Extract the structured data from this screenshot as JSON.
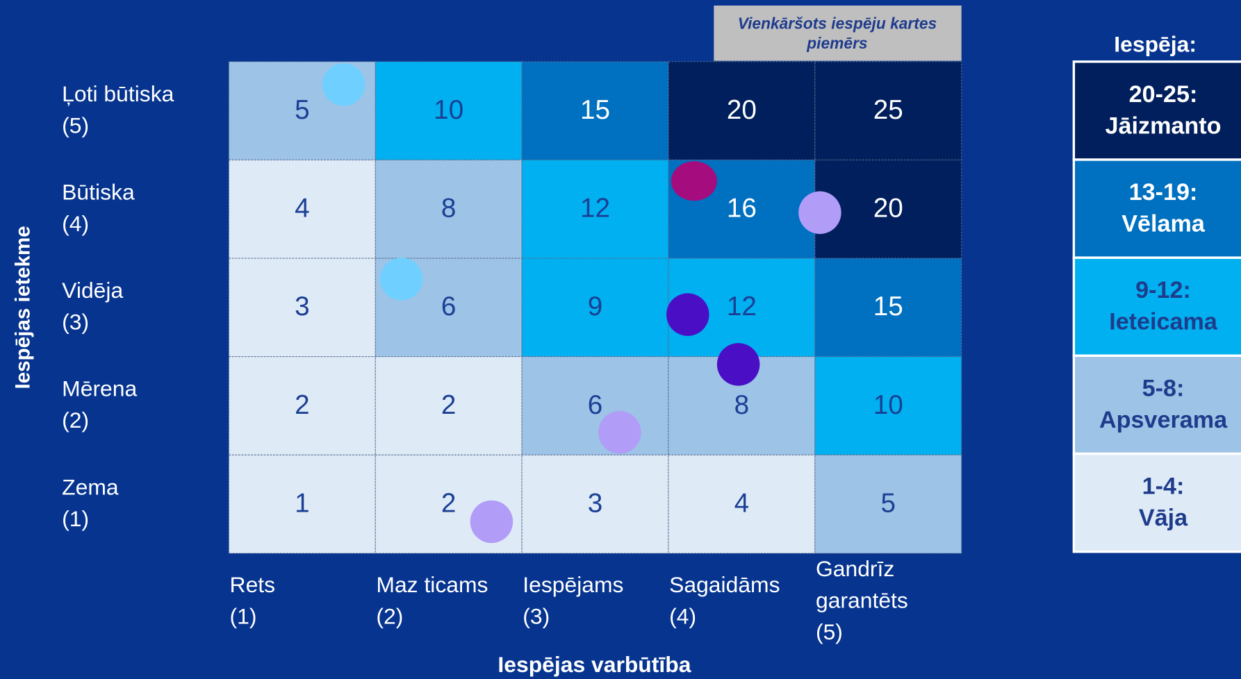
{
  "tag": [
    "Vienkāršots iespēju kartes",
    "piemērs"
  ],
  "y_axis_label": "Iespējas ietekme",
  "x_axis_label": "Iespējas varbūtība",
  "rows": [
    [
      "Ļoti būtiska",
      "(5)"
    ],
    [
      "Būtiska",
      "(4)"
    ],
    [
      "Vidēja",
      "(3)"
    ],
    [
      "Mērena",
      "(2)"
    ],
    [
      "Zema",
      "(1)"
    ]
  ],
  "columns": [
    [
      "Rets",
      "(1)"
    ],
    [
      "Maz ticams",
      "(2)"
    ],
    [
      "Iespējams",
      "(3)"
    ],
    [
      "Sagaidāms",
      "(4)"
    ],
    [
      "Gandrīz",
      "garantēts",
      "(5)"
    ]
  ],
  "cells": [
    [
      {
        "value": 5,
        "color": "#9dc3e6"
      },
      {
        "value": 10,
        "color": "#00b0f0"
      },
      {
        "value": 15,
        "color": "#0070c0"
      },
      {
        "value": 20,
        "color": "#001f5c"
      },
      {
        "value": 25,
        "color": "#001f5c"
      }
    ],
    [
      {
        "value": 4,
        "color": "#deebf7"
      },
      {
        "value": 8,
        "color": "#9dc3e6"
      },
      {
        "value": 12,
        "color": "#00b0f0"
      },
      {
        "value": 16,
        "color": "#0070c0"
      },
      {
        "value": 20,
        "color": "#001f5c"
      }
    ],
    [
      {
        "value": 3,
        "color": "#deebf7"
      },
      {
        "value": 6,
        "color": "#9dc3e6"
      },
      {
        "value": 9,
        "color": "#00b0f0"
      },
      {
        "value": 12,
        "color": "#00b0f0"
      },
      {
        "value": 15,
        "color": "#0070c0"
      }
    ],
    [
      {
        "value": 2,
        "color": "#deebf7"
      },
      {
        "value": 2,
        "color": "#deebf7"
      },
      {
        "value": 6,
        "color": "#9dc3e6"
      },
      {
        "value": 8,
        "color": "#9dc3e6"
      },
      {
        "value": 10,
        "color": "#00b0f0"
      }
    ],
    [
      {
        "value": 1,
        "color": "#deebf7"
      },
      {
        "value": 2,
        "color": "#deebf7"
      },
      {
        "value": 3,
        "color": "#deebf7"
      },
      {
        "value": 4,
        "color": "#deebf7"
      },
      {
        "value": 5,
        "color": "#9dc3e6"
      }
    ]
  ],
  "legend": {
    "title": "Iespēja:",
    "items": [
      {
        "lines": [
          "20-25:",
          "Jāizmanto"
        ],
        "color": "#001f5c"
      },
      {
        "lines": [
          "13-19:",
          "Vēlama"
        ],
        "color": "#0070c0"
      },
      {
        "lines": [
          "9-12:",
          "Ieteicama"
        ],
        "color": "#00b0f0"
      },
      {
        "lines": [
          "5-8:",
          "Apsverama"
        ],
        "color": "#9dc3e6"
      },
      {
        "lines": [
          "1-4:",
          "Vāja"
        ],
        "color": "#deebf7"
      }
    ]
  }
}
